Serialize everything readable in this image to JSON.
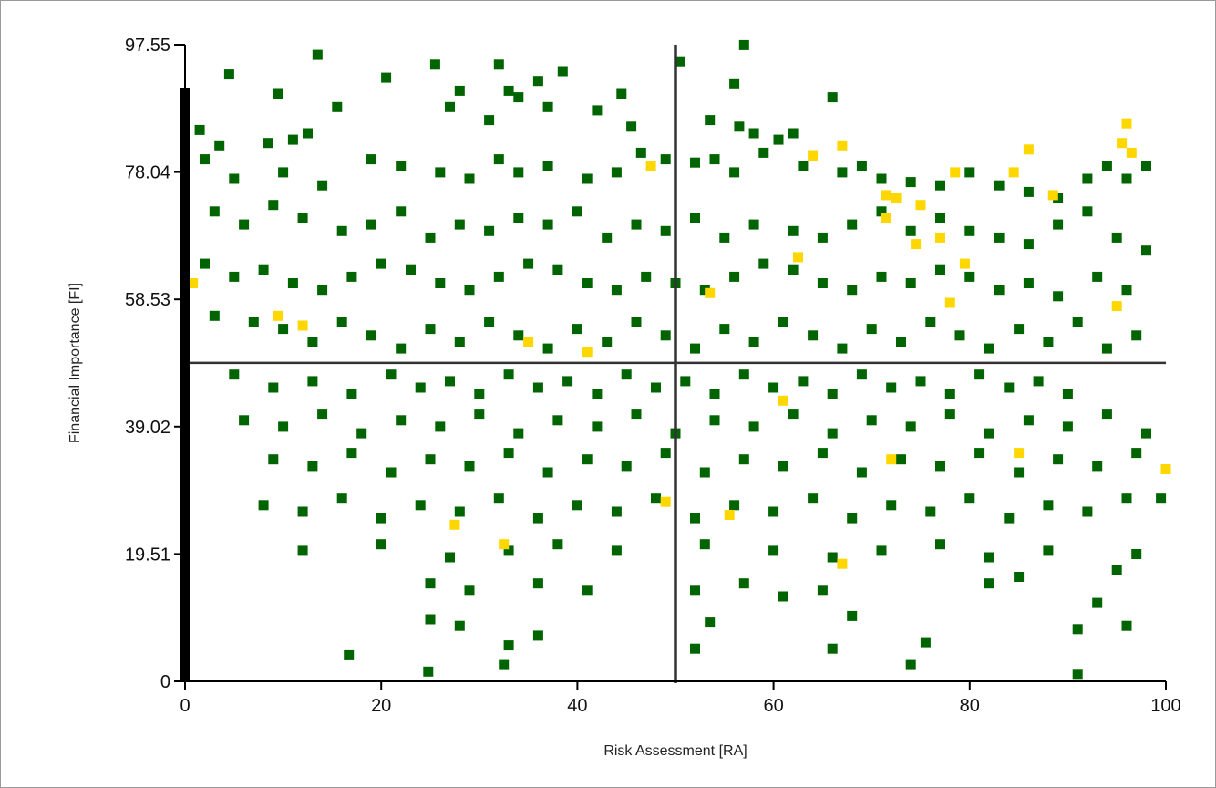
{
  "chart_data": {
    "type": "scatter",
    "xlabel": "Risk Assessment [RA]",
    "ylabel": "Financial Importance [FI]",
    "xlim": [
      0,
      100
    ],
    "ylim": [
      0,
      97.55
    ],
    "x_ticks": [
      "0",
      "20",
      "40",
      "60",
      "80",
      "100"
    ],
    "y_ticks": [
      "0",
      "19.51",
      "39.02",
      "58.53",
      "78.04",
      "97.55"
    ],
    "grid": false,
    "reference_lines": {
      "x": 50,
      "y": 48.8
    },
    "colors": {
      "green": "#006400",
      "yellow": "#ffd700",
      "axis": "#000000",
      "reference": "#333333"
    },
    "series": [
      {
        "color": "#006400",
        "points": [
          [
            13.5,
            96
          ],
          [
            25.5,
            94.5
          ],
          [
            32,
            94.5
          ],
          [
            4.5,
            93
          ],
          [
            20.5,
            92.5
          ],
          [
            38.5,
            93.5
          ],
          [
            36,
            92
          ],
          [
            28,
            90.5
          ],
          [
            56,
            91.5
          ],
          [
            9.5,
            90
          ],
          [
            33,
            90.5
          ],
          [
            34,
            89.5
          ],
          [
            44.5,
            90
          ],
          [
            1.5,
            84.5
          ],
          [
            3.5,
            82
          ],
          [
            8.5,
            82.5
          ],
          [
            11,
            83
          ],
          [
            12.5,
            84
          ],
          [
            15.5,
            88
          ],
          [
            27,
            88
          ],
          [
            31,
            86
          ],
          [
            37,
            88
          ],
          [
            42,
            87.5
          ],
          [
            45.5,
            85
          ],
          [
            53.5,
            86
          ],
          [
            56.5,
            85
          ],
          [
            58,
            84
          ],
          [
            60.5,
            83
          ],
          [
            62,
            84
          ],
          [
            66,
            89.5
          ],
          [
            2,
            80
          ],
          [
            5,
            77
          ],
          [
            10,
            78
          ],
          [
            14,
            76
          ],
          [
            19,
            80
          ],
          [
            22,
            79
          ],
          [
            26,
            78
          ],
          [
            29,
            77
          ],
          [
            32,
            80
          ],
          [
            34,
            78
          ],
          [
            37,
            79
          ],
          [
            41,
            77
          ],
          [
            44,
            78
          ],
          [
            46.5,
            81
          ],
          [
            49,
            80
          ],
          [
            52,
            79.5
          ],
          [
            54,
            80
          ],
          [
            56,
            78
          ],
          [
            59,
            81
          ],
          [
            63,
            79
          ],
          [
            67,
            78
          ],
          [
            69,
            79
          ],
          [
            71,
            77
          ],
          [
            74,
            76.5
          ],
          [
            77,
            76
          ],
          [
            80,
            78
          ],
          [
            83,
            76
          ],
          [
            86,
            75
          ],
          [
            89,
            74
          ],
          [
            92,
            77
          ],
          [
            94,
            79
          ],
          [
            96,
            77
          ],
          [
            98,
            79
          ],
          [
            3,
            72
          ],
          [
            6,
            70
          ],
          [
            9,
            73
          ],
          [
            12,
            71
          ],
          [
            16,
            69
          ],
          [
            19,
            70
          ],
          [
            22,
            72
          ],
          [
            25,
            68
          ],
          [
            28,
            70
          ],
          [
            31,
            69
          ],
          [
            34,
            71
          ],
          [
            37,
            70
          ],
          [
            40,
            72
          ],
          [
            43,
            68
          ],
          [
            46,
            70
          ],
          [
            49,
            69
          ],
          [
            52,
            71
          ],
          [
            55,
            68
          ],
          [
            58,
            70
          ],
          [
            62,
            69
          ],
          [
            65,
            68
          ],
          [
            68,
            70
          ],
          [
            71,
            72
          ],
          [
            74,
            69
          ],
          [
            77,
            71
          ],
          [
            80,
            69
          ],
          [
            83,
            68
          ],
          [
            86,
            67
          ],
          [
            89,
            70
          ],
          [
            92,
            72
          ],
          [
            95,
            68
          ],
          [
            98,
            66
          ],
          [
            2,
            64
          ],
          [
            5,
            62
          ],
          [
            8,
            63
          ],
          [
            11,
            61
          ],
          [
            14,
            60
          ],
          [
            17,
            62
          ],
          [
            20,
            64
          ],
          [
            23,
            63
          ],
          [
            26,
            61
          ],
          [
            29,
            60
          ],
          [
            32,
            62
          ],
          [
            35,
            64
          ],
          [
            38,
            63
          ],
          [
            41,
            61
          ],
          [
            44,
            60
          ],
          [
            47,
            62
          ],
          [
            50,
            61
          ],
          [
            53,
            60
          ],
          [
            56,
            62
          ],
          [
            59,
            64
          ],
          [
            62,
            63
          ],
          [
            65,
            61
          ],
          [
            68,
            60
          ],
          [
            71,
            62
          ],
          [
            74,
            61
          ],
          [
            77,
            63
          ],
          [
            80,
            62
          ],
          [
            83,
            60
          ],
          [
            86,
            61
          ],
          [
            89,
            59
          ],
          [
            93,
            62
          ],
          [
            96,
            60
          ],
          [
            3,
            56
          ],
          [
            7,
            55
          ],
          [
            10,
            54
          ],
          [
            13,
            52
          ],
          [
            16,
            55
          ],
          [
            19,
            53
          ],
          [
            22,
            51
          ],
          [
            25,
            54
          ],
          [
            28,
            52
          ],
          [
            31,
            55
          ],
          [
            34,
            53
          ],
          [
            37,
            51
          ],
          [
            40,
            54
          ],
          [
            43,
            52
          ],
          [
            46,
            55
          ],
          [
            49,
            53
          ],
          [
            52,
            51
          ],
          [
            55,
            54
          ],
          [
            58,
            52
          ],
          [
            61,
            55
          ],
          [
            64,
            53
          ],
          [
            67,
            51
          ],
          [
            70,
            54
          ],
          [
            73,
            52
          ],
          [
            76,
            55
          ],
          [
            79,
            53
          ],
          [
            82,
            51
          ],
          [
            85,
            54
          ],
          [
            88,
            52
          ],
          [
            91,
            55
          ],
          [
            94,
            51
          ],
          [
            97,
            53
          ],
          [
            5,
            47
          ],
          [
            9,
            45
          ],
          [
            13,
            46
          ],
          [
            17,
            44
          ],
          [
            21,
            47
          ],
          [
            24,
            45
          ],
          [
            27,
            46
          ],
          [
            30,
            44
          ],
          [
            33,
            47
          ],
          [
            36,
            45
          ],
          [
            39,
            46
          ],
          [
            42,
            44
          ],
          [
            45,
            47
          ],
          [
            48,
            45
          ],
          [
            51,
            46
          ],
          [
            54,
            44
          ],
          [
            57,
            47
          ],
          [
            60,
            45
          ],
          [
            63,
            46
          ],
          [
            66,
            44
          ],
          [
            69,
            47
          ],
          [
            72,
            45
          ],
          [
            75,
            46
          ],
          [
            78,
            44
          ],
          [
            81,
            47
          ],
          [
            84,
            45
          ],
          [
            87,
            46
          ],
          [
            90,
            44
          ],
          [
            6,
            40
          ],
          [
            10,
            39
          ],
          [
            14,
            41
          ],
          [
            18,
            38
          ],
          [
            22,
            40
          ],
          [
            26,
            39
          ],
          [
            30,
            41
          ],
          [
            34,
            38
          ],
          [
            38,
            40
          ],
          [
            42,
            39
          ],
          [
            46,
            41
          ],
          [
            50,
            38
          ],
          [
            54,
            40
          ],
          [
            58,
            39
          ],
          [
            62,
            41
          ],
          [
            66,
            38
          ],
          [
            70,
            40
          ],
          [
            74,
            39
          ],
          [
            78,
            41
          ],
          [
            82,
            38
          ],
          [
            86,
            40
          ],
          [
            90,
            39
          ],
          [
            94,
            41
          ],
          [
            98,
            38
          ],
          [
            9,
            34
          ],
          [
            13,
            33
          ],
          [
            17,
            35
          ],
          [
            21,
            32
          ],
          [
            25,
            34
          ],
          [
            29,
            33
          ],
          [
            33,
            35
          ],
          [
            37,
            32
          ],
          [
            41,
            34
          ],
          [
            45,
            33
          ],
          [
            49,
            35
          ],
          [
            53,
            32
          ],
          [
            57,
            34
          ],
          [
            61,
            33
          ],
          [
            65,
            35
          ],
          [
            69,
            32
          ],
          [
            73,
            34
          ],
          [
            77,
            33
          ],
          [
            81,
            35
          ],
          [
            85,
            32
          ],
          [
            89,
            34
          ],
          [
            93,
            33
          ],
          [
            97,
            35
          ],
          [
            8,
            27
          ],
          [
            12,
            26
          ],
          [
            16,
            28
          ],
          [
            20,
            25
          ],
          [
            24,
            27
          ],
          [
            28,
            26
          ],
          [
            32,
            28
          ],
          [
            36,
            25
          ],
          [
            40,
            27
          ],
          [
            44,
            26
          ],
          [
            48,
            28
          ],
          [
            52,
            25
          ],
          [
            56,
            27
          ],
          [
            60,
            26
          ],
          [
            64,
            28
          ],
          [
            68,
            25
          ],
          [
            72,
            27
          ],
          [
            76,
            26
          ],
          [
            80,
            28
          ],
          [
            84,
            25
          ],
          [
            88,
            27
          ],
          [
            92,
            26
          ],
          [
            96,
            28
          ],
          [
            12,
            20
          ],
          [
            20,
            21
          ],
          [
            27,
            19
          ],
          [
            33,
            20
          ],
          [
            38,
            21
          ],
          [
            44,
            20
          ],
          [
            53,
            21
          ],
          [
            60,
            20
          ],
          [
            66,
            19
          ],
          [
            71,
            20
          ],
          [
            77,
            21
          ],
          [
            82,
            19
          ],
          [
            88,
            20
          ],
          [
            97,
            19.5
          ],
          [
            25,
            15
          ],
          [
            29,
            14
          ],
          [
            36,
            15
          ],
          [
            41,
            14
          ],
          [
            52,
            14
          ],
          [
            57,
            15
          ],
          [
            61,
            13
          ],
          [
            65,
            14
          ],
          [
            82,
            15
          ],
          [
            85,
            16
          ],
          [
            93,
            12
          ],
          [
            95,
            17
          ],
          [
            25,
            9.5
          ],
          [
            28,
            8.5
          ],
          [
            33,
            5.5
          ],
          [
            36,
            7
          ],
          [
            52,
            5
          ],
          [
            53.5,
            9
          ],
          [
            66,
            5
          ],
          [
            68,
            10
          ],
          [
            74,
            2.5
          ],
          [
            75.5,
            6
          ],
          [
            91,
            8
          ],
          [
            96,
            8.5
          ],
          [
            24.8,
            1.5
          ],
          [
            16.7,
            4
          ],
          [
            32.5,
            2.5
          ],
          [
            91,
            1
          ],
          [
            99.5,
            28
          ],
          [
            57,
            97.5
          ],
          [
            50.5,
            95
          ]
        ]
      },
      {
        "color": "#ffd700",
        "points": [
          [
            0.8,
            61
          ],
          [
            9.5,
            56
          ],
          [
            12,
            54.5
          ],
          [
            27.5,
            24
          ],
          [
            32.5,
            21
          ],
          [
            35,
            52
          ],
          [
            41,
            50.5
          ],
          [
            47.5,
            79
          ],
          [
            49,
            27.5
          ],
          [
            53.5,
            59.5
          ],
          [
            55.5,
            25.5
          ],
          [
            61,
            43
          ],
          [
            62.5,
            65
          ],
          [
            64,
            80.5
          ],
          [
            67,
            82
          ],
          [
            67,
            18
          ],
          [
            71.5,
            74.5
          ],
          [
            71.5,
            71
          ],
          [
            72,
            34
          ],
          [
            72.5,
            74
          ],
          [
            74.5,
            67
          ],
          [
            75,
            73
          ],
          [
            77,
            68
          ],
          [
            78,
            58
          ],
          [
            78.5,
            78
          ],
          [
            79.5,
            64
          ],
          [
            84.5,
            78
          ],
          [
            85,
            35
          ],
          [
            86,
            81.5
          ],
          [
            88.5,
            74.5
          ],
          [
            95,
            57.5
          ],
          [
            95.5,
            82.5
          ],
          [
            96,
            85.5
          ],
          [
            96.5,
            81
          ],
          [
            100,
            32.5
          ]
        ]
      }
    ]
  }
}
